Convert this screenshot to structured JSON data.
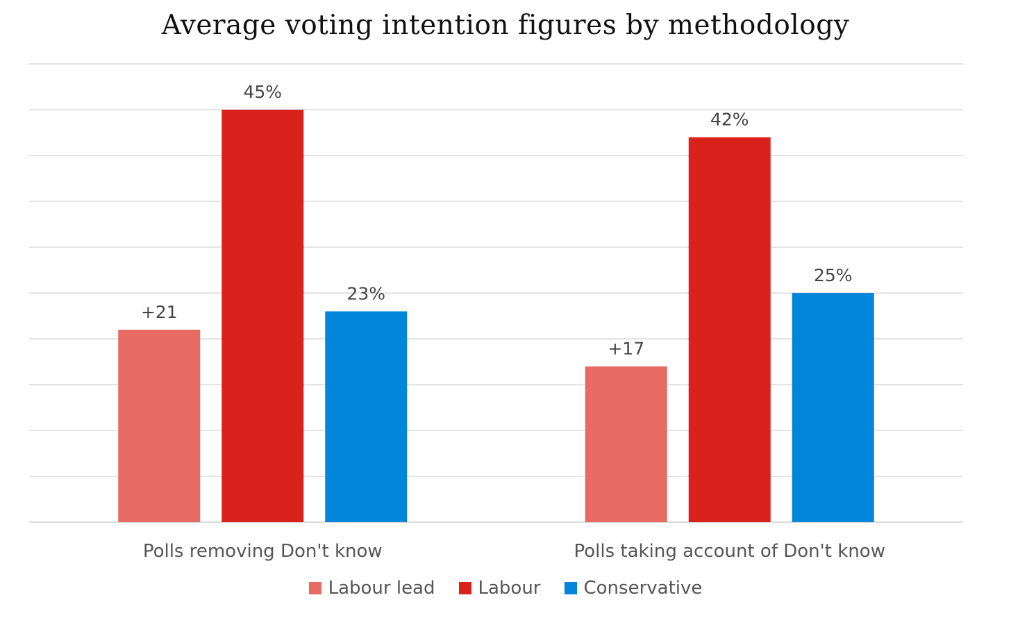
{
  "chart_data": {
    "type": "bar",
    "title": "Average voting intention figures by methodology",
    "categories": [
      "Polls removing Don't know",
      "Polls taking account of Don't know"
    ],
    "series": [
      {
        "name": "Labour lead",
        "values": [
          21,
          17
        ],
        "labels": [
          "+21",
          "+17"
        ],
        "color": "#e76a63"
      },
      {
        "name": "Labour",
        "values": [
          45,
          42
        ],
        "labels": [
          "45%",
          "42%"
        ],
        "color": "#da221c"
      },
      {
        "name": "Conservative",
        "values": [
          23,
          25
        ],
        "labels": [
          "23%",
          "25%"
        ],
        "color": "#0087dc"
      }
    ],
    "ylim": [
      0,
      50
    ],
    "grid": true,
    "legend_position": "bottom"
  }
}
